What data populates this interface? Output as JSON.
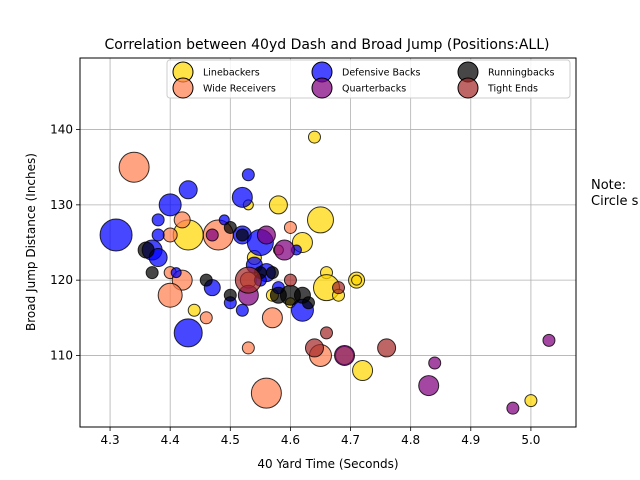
{
  "chart_data": {
    "type": "scatter",
    "title": "Correlation between 40yd Dash and Broad Jump (Positions:ALL)",
    "xlabel": "40 Yard Time (Seconds)",
    "ylabel": "Broad Jump Distance (Inches)",
    "xlim": [
      4.25,
      5.075
    ],
    "ylim": [
      100.5,
      149.5
    ],
    "xticks": [
      4.3,
      4.4,
      4.5,
      4.6,
      4.7,
      4.8,
      4.9,
      5.0
    ],
    "yticks": [
      110,
      120,
      130,
      140
    ],
    "xtick_labels": [
      "4.3",
      "4.4",
      "4.5",
      "4.6",
      "4.7",
      "4.8",
      "4.9",
      "5.0"
    ],
    "ytick_labels": [
      "110",
      "120",
      "130",
      "140"
    ],
    "grid": true,
    "legend_placement": "top-center",
    "legend_ncol": 3,
    "note_lines": [
      "Note:",
      "Circle s"
    ],
    "series": [
      {
        "name": "Linebackers",
        "color": "#FFD700",
        "points": [
          {
            "x": 4.64,
            "y": 139,
            "s": 6
          },
          {
            "x": 4.58,
            "y": 130,
            "s": 9
          },
          {
            "x": 4.65,
            "y": 128,
            "s": 13
          },
          {
            "x": 4.43,
            "y": 126,
            "s": 15
          },
          {
            "x": 4.53,
            "y": 130,
            "s": 5
          },
          {
            "x": 4.62,
            "y": 125,
            "s": 10
          },
          {
            "x": 4.54,
            "y": 123,
            "s": 7
          },
          {
            "x": 4.66,
            "y": 121,
            "s": 6
          },
          {
            "x": 4.71,
            "y": 120,
            "s": 8
          },
          {
            "x": 4.71,
            "y": 120,
            "s": 5
          },
          {
            "x": 4.66,
            "y": 119,
            "s": 13
          },
          {
            "x": 4.68,
            "y": 118,
            "s": 6
          },
          {
            "x": 4.44,
            "y": 116,
            "s": 6
          },
          {
            "x": 4.57,
            "y": 118,
            "s": 6
          },
          {
            "x": 4.69,
            "y": 110,
            "s": 9
          },
          {
            "x": 4.72,
            "y": 108,
            "s": 10
          },
          {
            "x": 5.0,
            "y": 104,
            "s": 6
          },
          {
            "x": 4.6,
            "y": 117,
            "s": 5
          }
        ]
      },
      {
        "name": "Wide Receivers",
        "color": "#FF7F50",
        "points": [
          {
            "x": 4.34,
            "y": 135,
            "s": 15
          },
          {
            "x": 4.42,
            "y": 128,
            "s": 8
          },
          {
            "x": 4.4,
            "y": 126,
            "s": 7
          },
          {
            "x": 4.48,
            "y": 126,
            "s": 15
          },
          {
            "x": 4.6,
            "y": 127,
            "s": 6
          },
          {
            "x": 4.4,
            "y": 121,
            "s": 6
          },
          {
            "x": 4.42,
            "y": 120,
            "s": 10
          },
          {
            "x": 4.4,
            "y": 118,
            "s": 12
          },
          {
            "x": 4.46,
            "y": 115,
            "s": 6
          },
          {
            "x": 4.53,
            "y": 120,
            "s": 8
          },
          {
            "x": 4.57,
            "y": 115,
            "s": 10
          },
          {
            "x": 4.53,
            "y": 111,
            "s": 6
          },
          {
            "x": 4.65,
            "y": 110,
            "s": 11
          },
          {
            "x": 4.56,
            "y": 105,
            "s": 15
          },
          {
            "x": 4.58,
            "y": 124,
            "s": 5
          }
        ]
      },
      {
        "name": "Defensive Backs",
        "color": "#0000FF",
        "points": [
          {
            "x": 4.31,
            "y": 126,
            "s": 16
          },
          {
            "x": 4.4,
            "y": 130,
            "s": 11
          },
          {
            "x": 4.43,
            "y": 132,
            "s": 9
          },
          {
            "x": 4.38,
            "y": 128,
            "s": 6
          },
          {
            "x": 4.38,
            "y": 126,
            "s": 6
          },
          {
            "x": 4.37,
            "y": 124,
            "s": 10
          },
          {
            "x": 4.38,
            "y": 123,
            "s": 9
          },
          {
            "x": 4.41,
            "y": 121,
            "s": 5
          },
          {
            "x": 4.53,
            "y": 134,
            "s": 6
          },
          {
            "x": 4.52,
            "y": 131,
            "s": 10
          },
          {
            "x": 4.49,
            "y": 128,
            "s": 5
          },
          {
            "x": 4.52,
            "y": 126,
            "s": 9
          },
          {
            "x": 4.55,
            "y": 125,
            "s": 13
          },
          {
            "x": 4.61,
            "y": 124,
            "s": 5
          },
          {
            "x": 4.54,
            "y": 122,
            "s": 8
          },
          {
            "x": 4.56,
            "y": 121,
            "s": 9
          },
          {
            "x": 4.55,
            "y": 120,
            "s": 6
          },
          {
            "x": 4.47,
            "y": 119,
            "s": 8
          },
          {
            "x": 4.5,
            "y": 117,
            "s": 6
          },
          {
            "x": 4.52,
            "y": 116,
            "s": 6
          },
          {
            "x": 4.43,
            "y": 113,
            "s": 14
          },
          {
            "x": 4.62,
            "y": 116,
            "s": 11
          },
          {
            "x": 4.58,
            "y": 119,
            "s": 6
          }
        ]
      },
      {
        "name": "Quarterbacks",
        "color": "#800080",
        "points": [
          {
            "x": 4.56,
            "y": 126,
            "s": 9
          },
          {
            "x": 4.47,
            "y": 126,
            "s": 6
          },
          {
            "x": 4.59,
            "y": 124,
            "s": 10
          },
          {
            "x": 4.53,
            "y": 118,
            "s": 10
          },
          {
            "x": 4.69,
            "y": 110,
            "s": 10
          },
          {
            "x": 4.84,
            "y": 109,
            "s": 6
          },
          {
            "x": 4.83,
            "y": 106,
            "s": 10
          },
          {
            "x": 4.97,
            "y": 103,
            "s": 6
          },
          {
            "x": 5.03,
            "y": 112,
            "s": 6
          }
        ]
      },
      {
        "name": "Runningbacks",
        "color": "#000000",
        "points": [
          {
            "x": 4.36,
            "y": 124,
            "s": 8
          },
          {
            "x": 4.37,
            "y": 121,
            "s": 6
          },
          {
            "x": 4.46,
            "y": 120,
            "s": 6
          },
          {
            "x": 4.5,
            "y": 127,
            "s": 6
          },
          {
            "x": 4.52,
            "y": 126,
            "s": 6
          },
          {
            "x": 4.55,
            "y": 121,
            "s": 6
          },
          {
            "x": 4.57,
            "y": 121,
            "s": 6
          },
          {
            "x": 4.58,
            "y": 118,
            "s": 8
          },
          {
            "x": 4.6,
            "y": 118,
            "s": 10
          },
          {
            "x": 4.62,
            "y": 118,
            "s": 8
          },
          {
            "x": 4.63,
            "y": 117,
            "s": 6
          },
          {
            "x": 4.5,
            "y": 118,
            "s": 6
          }
        ]
      },
      {
        "name": "Tight Ends",
        "color": "#A52A2A",
        "points": [
          {
            "x": 4.53,
            "y": 120,
            "s": 13
          },
          {
            "x": 4.64,
            "y": 111,
            "s": 9
          },
          {
            "x": 4.66,
            "y": 113,
            "s": 6
          },
          {
            "x": 4.68,
            "y": 119,
            "s": 6
          },
          {
            "x": 4.76,
            "y": 111,
            "s": 9
          },
          {
            "x": 4.6,
            "y": 120,
            "s": 6
          }
        ]
      }
    ]
  }
}
